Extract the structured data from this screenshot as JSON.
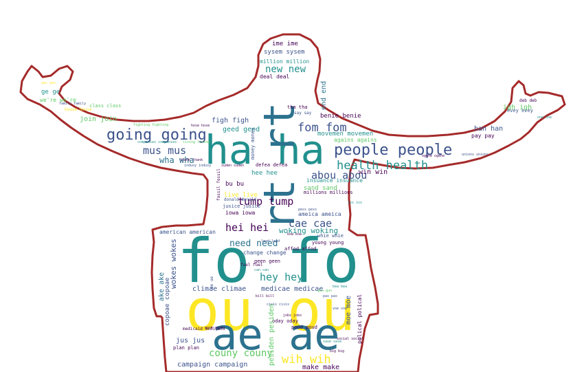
{
  "colors": {
    "outline": "#a52a2a",
    "purple": "#440154",
    "indigo": "#3b528b",
    "teal": "#21908d",
    "green": "#5dc863",
    "yellow": "#fde725",
    "blue": "#2c728e",
    "olive": "#7ad151"
  },
  "words": [
    "ime ime",
    "sysem sysem",
    "million million",
    "new new",
    "deal deal",
    "fom fom",
    "people people",
    "ha ha",
    "health health",
    "abou abou",
    "win win",
    "going going",
    "mus mus",
    "wha wha",
    "tump tump",
    "hei hei",
    "cae cae",
    "woking woking",
    "need need",
    "hey hey",
    "climae climae",
    "medicae medicae",
    "fo fo",
    "ou ou",
    "ae ae",
    "couny couny",
    "wih wih",
    "campaign campaign",
    "make make",
    "jus jus",
    "pesiden pesiden",
    "moe moe",
    "polical polical",
    "rt rt",
    "end end",
    "figh figh",
    "geed geed",
    "join join",
    "ge ge",
    "we're we're",
    "class class",
    "igh igh",
    "evey evey",
    "han han",
    "pay pay",
    "benie benie",
    "movemen movemen",
    "agains agains",
    "insuance insuance",
    "millions millions",
    "sand sand",
    "live live",
    "bu bu",
    "hee hee",
    "iowa iowa",
    "ameica ameica",
    "jusice jusice",
    "donald donald",
    "american american",
    "change change",
    "geen geen",
    "affod affod",
    "young young",
    "whie whie",
    "fuel fuel",
    "copoae copoae",
    "wokes wokes",
    "ake ake",
    "poud poud",
    "oday oday",
    "plan plan",
    "defea defea",
    "tha tha",
    "say say",
    "money money",
    "house house",
    "deb deb",
    "one one",
    "yes yes",
    "family family",
    "fighting fighting",
    "hose hose",
    "companies companies",
    "living living",
    "thank thank",
    "indusy indusy",
    "suden suden",
    "fossil fossil",
    "jobs jobs",
    "lead lead",
    "kow kow",
    "can can",
    "big big",
    "pas pas",
    "bea bea",
    "bill bill",
    "gun gun",
    "save save",
    "social social",
    "voe voe",
    "work work",
    "pess pess",
    "iss iss",
    "ue ue",
    "cisis cisis",
    "medicaid medicaid",
    "ogehe ogehe",
    "unions unions",
    "believe believe"
  ]
}
